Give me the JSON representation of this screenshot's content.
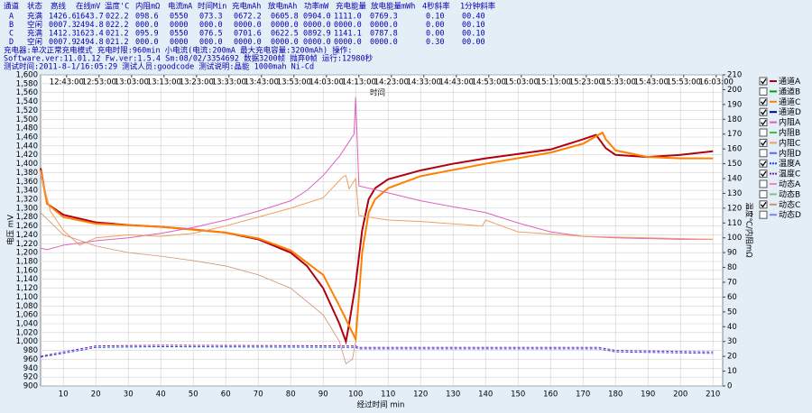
{
  "header": {
    "columns": [
      "通道",
      "状态",
      "高线",
      "在线mV",
      "温度'C",
      "内阻mΩ",
      "电流mA",
      "时间Min",
      "充电mAh",
      "放电mAh",
      "功率mW",
      "充电能量",
      "放电能量mWh",
      "4秒斜率",
      "1分钟斜率"
    ],
    "rows": [
      [
        "A",
        "充满",
        "1426.6",
        "1643.7",
        "022.2",
        "098.6",
        "0550",
        "073.3",
        "0672.2",
        "0605.8",
        "0904.0",
        "1111.0",
        "0769.3",
        "0.10",
        "00.40"
      ],
      [
        "B",
        "空闲",
        "0007.3",
        "2494.8",
        "022.2",
        "000.0",
        "0000",
        "000.0",
        "0000.0",
        "0000.0",
        "0000.0",
        "0000.0",
        "0000.0",
        "0.00",
        "00.10"
      ],
      [
        "C",
        "充满",
        "1412.3",
        "1623.4",
        "021.2",
        "095.9",
        "0550",
        "076.5",
        "0701.6",
        "0622.5",
        "0892.9",
        "1141.1",
        "0787.8",
        "0.00",
        "00.10"
      ],
      [
        "D",
        "空闲",
        "0007.9",
        "2494.8",
        "021.2",
        "000.0",
        "0000",
        "000.0",
        "0000.0",
        "0000.0",
        "0000.0",
        "0000.0",
        "0000.0",
        "0.30",
        "00.00"
      ]
    ],
    "info": [
      "充电器:单次正常充电模式  充电时限:960min  小电流(电流:200mA  最大充电容量:3200mAh)  操作:",
      "Software.ver:11.01.12  Fw.ver:1.5.4  Sm:08/02/3354692  数据3200帧  抛弃0帧  运行:12980秒",
      "测试时间:2011-8-1/16:05:29    测试人员:goodcode    测试说明:晶能 1000mah Ni-Cd"
    ]
  },
  "chart_data": {
    "type": "line",
    "xlabel": "经过时间 min",
    "ylabel": "电压 mV",
    "y2label": "温度℃/内阻mΩ",
    "annotation": "时间",
    "grid": true,
    "xlim": [
      3,
      213
    ],
    "xticks": [
      10,
      20,
      30,
      40,
      50,
      60,
      70,
      80,
      90,
      100,
      110,
      120,
      130,
      140,
      150,
      160,
      170,
      180,
      190,
      200,
      210
    ],
    "x2ticks": [
      {
        "value": 11,
        "label": "12:43:00"
      },
      {
        "value": 21,
        "label": "12:53:00"
      },
      {
        "value": 31,
        "label": "13:03:00"
      },
      {
        "value": 41,
        "label": "13:13:00"
      },
      {
        "value": 51,
        "label": "13:23:00"
      },
      {
        "value": 61,
        "label": "13:33:00"
      },
      {
        "value": 71,
        "label": "13:43:00"
      },
      {
        "value": 81,
        "label": "13:53:00"
      },
      {
        "value": 91,
        "label": "14:03:00"
      },
      {
        "value": 101,
        "label": "14:13:00"
      },
      {
        "value": 111,
        "label": "14:23:00"
      },
      {
        "value": 121,
        "label": "14:33:00"
      },
      {
        "value": 131,
        "label": "14:43:00"
      },
      {
        "value": 141,
        "label": "14:53:00"
      },
      {
        "value": 151,
        "label": "15:03:00"
      },
      {
        "value": 161,
        "label": "15:13:00"
      },
      {
        "value": 171,
        "label": "15:23:00"
      },
      {
        "value": 181,
        "label": "15:33:00"
      },
      {
        "value": 191,
        "label": "15:43:00"
      },
      {
        "value": 201,
        "label": "15:53:00"
      },
      {
        "value": 211,
        "label": "16:03:00"
      }
    ],
    "ylim": [
      900,
      1600
    ],
    "yticks": [
      900,
      920,
      940,
      960,
      980,
      {
        "value": 1000,
        "label": "1,000"
      },
      {
        "value": 1020,
        "label": "1,020"
      },
      {
        "value": 1040,
        "label": "1,040"
      },
      {
        "value": 1060,
        "label": "1,060"
      },
      {
        "value": 1080,
        "label": "1,080"
      },
      {
        "value": 1100,
        "label": "1,100"
      },
      {
        "value": 1120,
        "label": "1,120"
      },
      {
        "value": 1140,
        "label": "1,140"
      },
      {
        "value": 1160,
        "label": "1,160"
      },
      {
        "value": 1180,
        "label": "1,180"
      },
      {
        "value": 1200,
        "label": "1,200"
      },
      {
        "value": 1220,
        "label": "1,220"
      },
      {
        "value": 1240,
        "label": "1,240"
      },
      {
        "value": 1260,
        "label": "1,260"
      },
      {
        "value": 1280,
        "label": "1,280"
      },
      {
        "value": 1300,
        "label": "1,300"
      },
      {
        "value": 1320,
        "label": "1,320"
      },
      {
        "value": 1340,
        "label": "1,340"
      },
      {
        "value": 1360,
        "label": "1,360"
      },
      {
        "value": 1380,
        "label": "1,380"
      },
      {
        "value": 1400,
        "label": "1,400"
      },
      {
        "value": 1420,
        "label": "1,420"
      },
      {
        "value": 1440,
        "label": "1,440"
      },
      {
        "value": 1460,
        "label": "1,460"
      },
      {
        "value": 1480,
        "label": "1,480"
      },
      {
        "value": 1500,
        "label": "1,500"
      },
      {
        "value": 1520,
        "label": "1,520"
      },
      {
        "value": 1540,
        "label": "1,540"
      },
      {
        "value": 1560,
        "label": "1,560"
      },
      {
        "value": 1580,
        "label": "1,580"
      },
      {
        "value": 1600,
        "label": "1,600"
      }
    ],
    "y2lim": [
      0,
      210
    ],
    "y2ticks": [
      0,
      10,
      20,
      30,
      40,
      50,
      60,
      70,
      80,
      90,
      100,
      110,
      120,
      130,
      140,
      150,
      160,
      170,
      180,
      190,
      200,
      210
    ],
    "series": [
      {
        "name": "通道A",
        "color": "#b00010",
        "checked": true,
        "width": 2,
        "x": [
          3,
          5,
          10,
          20,
          30,
          40,
          50,
          60,
          70,
          80,
          85,
          90,
          95,
          97,
          98,
          100,
          102,
          104,
          106,
          110,
          120,
          130,
          140,
          150,
          160,
          170,
          174,
          177,
          180,
          190,
          200,
          210
        ],
        "values": [
          1390,
          1310,
          1285,
          1268,
          1262,
          1258,
          1252,
          1245,
          1230,
          1200,
          1170,
          1120,
          1040,
          1000,
          1040,
          1130,
          1250,
          1320,
          1345,
          1365,
          1385,
          1400,
          1412,
          1422,
          1432,
          1455,
          1465,
          1435,
          1420,
          1415,
          1420,
          1428
        ]
      },
      {
        "name": "通道B",
        "color": "#00a000",
        "checked": false
      },
      {
        "name": "通道C",
        "color": "#ff8000",
        "checked": true,
        "width": 2,
        "x": [
          3,
          5,
          10,
          20,
          40,
          60,
          70,
          80,
          90,
          95,
          99,
          100,
          101,
          102,
          104,
          106,
          110,
          120,
          140,
          160,
          170,
          176,
          177,
          180,
          190,
          200,
          210
        ],
        "values": [
          1385,
          1310,
          1280,
          1265,
          1258,
          1245,
          1232,
          1205,
          1150,
          1080,
          1020,
          1005,
          1100,
          1200,
          1290,
          1320,
          1345,
          1372,
          1400,
          1425,
          1445,
          1470,
          1455,
          1430,
          1415,
          1412,
          1412
        ]
      },
      {
        "name": "通道D",
        "color": "#000090",
        "checked": true
      },
      {
        "name": "内阻A",
        "color": "#e060c0",
        "checked": true,
        "width": 1,
        "axis": "y2",
        "x": [
          3,
          5,
          10,
          20,
          30,
          40,
          50,
          60,
          70,
          80,
          85,
          90,
          95,
          98,
          99.5,
          100,
          101,
          105,
          120,
          140,
          150,
          160,
          170,
          180,
          200,
          210
        ],
        "values": [
          93,
          92,
          95,
          98,
          100,
          103,
          107,
          112,
          118,
          125,
          132,
          142,
          155,
          165,
          170,
          195,
          135,
          133,
          125,
          117,
          110,
          104,
          101,
          100,
          99,
          99
        ]
      },
      {
        "name": "内阻B",
        "color": "#40c040",
        "checked": false
      },
      {
        "name": "内阻C",
        "color": "#f0a060",
        "checked": true,
        "width": 1,
        "axis": "y2",
        "x": [
          3,
          6,
          10,
          15,
          20,
          30,
          40,
          50,
          60,
          70,
          80,
          90,
          96,
          97,
          98,
          100,
          101,
          110,
          120,
          139,
          140,
          150,
          170,
          210
        ],
        "values": [
          144,
          118,
          105,
          95,
          100,
          102,
          101,
          103,
          108,
          114,
          120,
          127,
          141,
          142,
          133,
          140,
          115,
          112,
          111,
          108,
          112,
          104,
          101,
          99
        ]
      },
      {
        "name": "内阻D",
        "color": "#6060ff",
        "checked": false
      },
      {
        "name": "温度A",
        "color": "#2040ff",
        "checked": true,
        "dash": true,
        "width": 1,
        "axis": "y2",
        "x": [
          3,
          10,
          20,
          40,
          100,
          101,
          140,
          175,
          180,
          210
        ],
        "values": [
          19.5,
          22,
          26,
          26.5,
          26,
          25,
          25,
          25,
          23,
          22
        ]
      },
      {
        "name": "温度C",
        "color": "#8020a0",
        "checked": true,
        "dash": true,
        "width": 1,
        "axis": "y2",
        "x": [
          3,
          10,
          20,
          40,
          100,
          101,
          175,
          180,
          210
        ],
        "values": [
          20,
          23,
          27,
          27.5,
          27,
          26,
          26,
          24,
          23
        ]
      },
      {
        "name": "动态A",
        "color": "#ff80c0",
        "checked": false
      },
      {
        "name": "动态B",
        "color": "#80c080",
        "checked": false
      },
      {
        "name": "动态C",
        "color": "#d09070",
        "checked": true,
        "width": 0.8,
        "x": [
          3,
          10,
          20,
          30,
          40,
          50,
          60,
          70,
          80,
          90,
          95,
          97,
          99,
          100
        ],
        "values": [
          1290,
          1240,
          1215,
          1200,
          1192,
          1182,
          1170,
          1150,
          1120,
          1060,
          1000,
          950,
          960,
          1000
        ]
      },
      {
        "name": "动态D",
        "color": "#8080ff",
        "checked": false
      }
    ]
  }
}
